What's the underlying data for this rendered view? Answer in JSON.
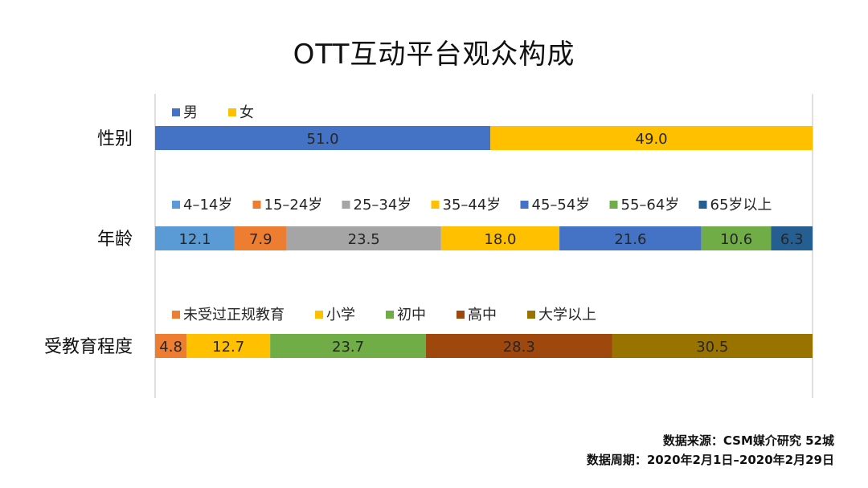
{
  "title": "OTT互动平台观众构成",
  "source": {
    "line1": "数据来源：CSM媒介研究 52城",
    "line2": "数据周期：2020年2月1日–2020年2月29日"
  },
  "chart_data": {
    "type": "bar",
    "stacked": "100%",
    "orientation": "horizontal",
    "grid": false,
    "xlim": [
      0,
      100
    ],
    "groups": [
      {
        "label": "性别",
        "legend_position": "top-left",
        "series": [
          {
            "name": "男",
            "value": 51.0,
            "color": "#4472C4"
          },
          {
            "name": "女",
            "value": 49.0,
            "color": "#FFC000"
          }
        ]
      },
      {
        "label": "年龄",
        "legend_position": "top-left",
        "series": [
          {
            "name": "4–14岁",
            "value": 12.1,
            "color": "#5B9BD5"
          },
          {
            "name": "15–24岁",
            "value": 7.9,
            "color": "#ED7D31"
          },
          {
            "name": "25–34岁",
            "value": 23.5,
            "color": "#A5A5A5"
          },
          {
            "name": "35–44岁",
            "value": 18.0,
            "color": "#FFC000"
          },
          {
            "name": "45–54岁",
            "value": 21.6,
            "color": "#4472C4"
          },
          {
            "name": "55–64岁",
            "value": 10.6,
            "color": "#70AD47"
          },
          {
            "name": "65岁以上",
            "value": 6.3,
            "color": "#255E91"
          }
        ]
      },
      {
        "label": "受教育程度",
        "legend_position": "top-left",
        "series": [
          {
            "name": "未受过正规教育",
            "value": 4.8,
            "color": "#ED7D31"
          },
          {
            "name": "小学",
            "value": 12.7,
            "color": "#FFC000"
          },
          {
            "name": "初中",
            "value": 23.7,
            "color": "#70AD47"
          },
          {
            "name": "高中",
            "value": 28.3,
            "color": "#9E480E"
          },
          {
            "name": "大学以上",
            "value": 30.5,
            "color": "#997300"
          }
        ]
      }
    ]
  }
}
